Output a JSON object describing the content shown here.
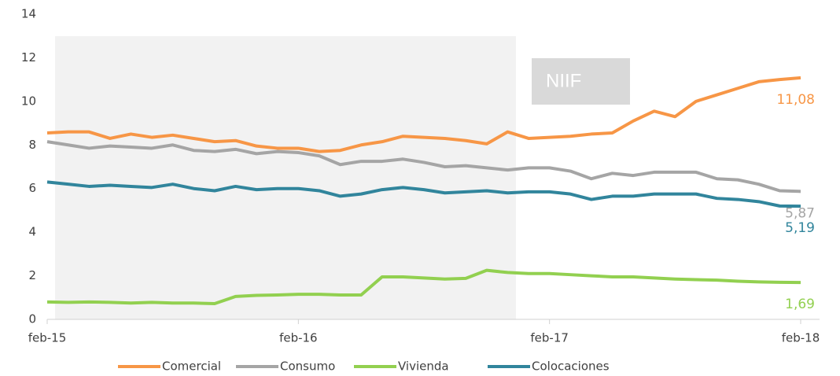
{
  "chart_data": {
    "type": "line",
    "categories": [
      "feb-15",
      null,
      null,
      null,
      null,
      null,
      null,
      null,
      null,
      null,
      null,
      null,
      "feb-16",
      null,
      null,
      null,
      null,
      null,
      null,
      null,
      null,
      null,
      null,
      null,
      "feb-17",
      null,
      null,
      null,
      null,
      null,
      null,
      null,
      null,
      null,
      null,
      null,
      "feb-18"
    ],
    "series": [
      {
        "name": "Comercial",
        "color": "#f79646",
        "values": [
          8.55,
          8.6,
          8.6,
          8.3,
          8.5,
          8.35,
          8.45,
          8.3,
          8.15,
          8.2,
          7.95,
          7.85,
          7.85,
          7.7,
          7.75,
          8.0,
          8.15,
          8.4,
          8.35,
          8.3,
          8.2,
          8.05,
          8.6,
          8.3,
          8.35,
          8.4,
          8.5,
          8.55,
          9.1,
          9.55,
          9.3,
          10.0,
          10.3,
          10.6,
          10.9,
          11.0,
          11.08
        ],
        "value_labels": [
          null,
          null,
          null,
          null,
          null,
          null,
          null,
          null,
          null,
          null,
          null,
          null,
          null,
          null,
          null,
          null,
          null,
          null,
          null,
          null,
          null,
          null,
          null,
          null,
          null,
          null,
          null,
          null,
          null,
          null,
          null,
          null,
          null,
          null,
          null,
          null,
          "11,08"
        ]
      },
      {
        "name": "Consumo",
        "color": "#a5a5a5",
        "values": [
          8.15,
          8.0,
          7.85,
          7.95,
          7.9,
          7.85,
          8.0,
          7.75,
          7.7,
          7.8,
          7.6,
          7.7,
          7.65,
          7.5,
          7.1,
          7.25,
          7.25,
          7.35,
          7.2,
          7.0,
          7.05,
          6.95,
          6.85,
          6.95,
          6.95,
          6.8,
          6.45,
          6.7,
          6.6,
          6.75,
          6.75,
          6.75,
          6.45,
          6.4,
          6.2,
          5.9,
          5.87
        ],
        "value_labels": [
          null,
          null,
          null,
          null,
          null,
          null,
          null,
          null,
          null,
          null,
          null,
          null,
          null,
          null,
          null,
          null,
          null,
          null,
          null,
          null,
          null,
          null,
          null,
          null,
          null,
          null,
          null,
          null,
          null,
          null,
          null,
          null,
          null,
          null,
          null,
          null,
          "5,87"
        ]
      },
      {
        "name": "Vivienda",
        "color": "#92d050",
        "values": [
          0.8,
          0.78,
          0.8,
          0.78,
          0.75,
          0.78,
          0.75,
          0.75,
          0.72,
          1.05,
          1.1,
          1.12,
          1.15,
          1.15,
          1.12,
          1.12,
          1.95,
          1.95,
          1.9,
          1.85,
          1.88,
          2.25,
          2.15,
          2.1,
          2.1,
          2.05,
          2.0,
          1.95,
          1.95,
          1.9,
          1.85,
          1.82,
          1.8,
          1.75,
          1.72,
          1.7,
          1.69
        ],
        "value_labels": [
          null,
          null,
          null,
          null,
          null,
          null,
          null,
          null,
          null,
          null,
          null,
          null,
          null,
          null,
          null,
          null,
          null,
          null,
          null,
          null,
          null,
          null,
          null,
          null,
          null,
          null,
          null,
          null,
          null,
          null,
          null,
          null,
          null,
          null,
          null,
          null,
          "1,69"
        ]
      },
      {
        "name": "Colocaciones",
        "color": "#31859c",
        "values": [
          6.3,
          6.2,
          6.1,
          6.15,
          6.1,
          6.05,
          6.2,
          6.0,
          5.9,
          6.1,
          5.95,
          6.0,
          6.0,
          5.9,
          5.65,
          5.75,
          5.95,
          6.05,
          5.95,
          5.8,
          5.85,
          5.9,
          5.8,
          5.85,
          5.85,
          5.75,
          5.5,
          5.65,
          5.65,
          5.75,
          5.75,
          5.75,
          5.55,
          5.5,
          5.4,
          5.2,
          5.19
        ],
        "value_labels": [
          null,
          null,
          null,
          null,
          null,
          null,
          null,
          null,
          null,
          null,
          null,
          null,
          null,
          null,
          null,
          null,
          null,
          null,
          null,
          null,
          null,
          null,
          null,
          null,
          null,
          null,
          null,
          null,
          null,
          null,
          null,
          null,
          null,
          null,
          null,
          null,
          "5,19"
        ]
      }
    ],
    "annotations": [
      "NIIF"
    ],
    "ylim": [
      0,
      14
    ],
    "yticks": [
      0,
      2,
      4,
      6,
      8,
      10,
      12,
      14
    ],
    "grid": false,
    "legend": "bottom"
  }
}
